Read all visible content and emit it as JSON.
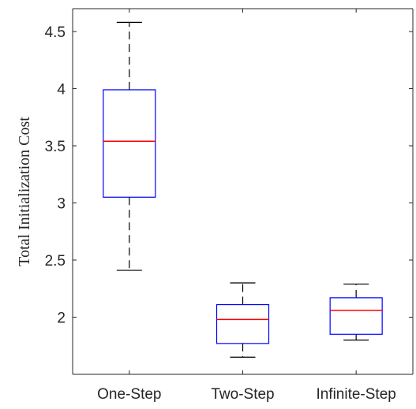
{
  "chart_data": {
    "type": "boxplot",
    "title": "",
    "xlabel": "",
    "ylabel": "Total Initialization Cost",
    "categories": [
      "One-Step",
      "Two-Step",
      "Infinite-Step"
    ],
    "boxes": [
      {
        "category": "One-Step",
        "whisker_low": 2.41,
        "q1": 3.05,
        "median": 3.54,
        "q3": 3.99,
        "whisker_high": 4.58
      },
      {
        "category": "Two-Step",
        "whisker_low": 1.65,
        "q1": 1.77,
        "median": 1.98,
        "q3": 2.11,
        "whisker_high": 2.3
      },
      {
        "category": "Infinite-Step",
        "whisker_low": 1.8,
        "q1": 1.85,
        "median": 2.06,
        "q3": 2.17,
        "whisker_high": 2.29
      }
    ],
    "yticks": [
      "2",
      "2.5",
      "3",
      "3.5",
      "4",
      "4.5"
    ],
    "ylim": [
      1.5,
      4.7
    ],
    "grid": false,
    "legend": "none",
    "colors": {
      "box": "#0000ff",
      "median": "#ff0000",
      "whisker": "#000000",
      "axis": "#262626"
    }
  }
}
